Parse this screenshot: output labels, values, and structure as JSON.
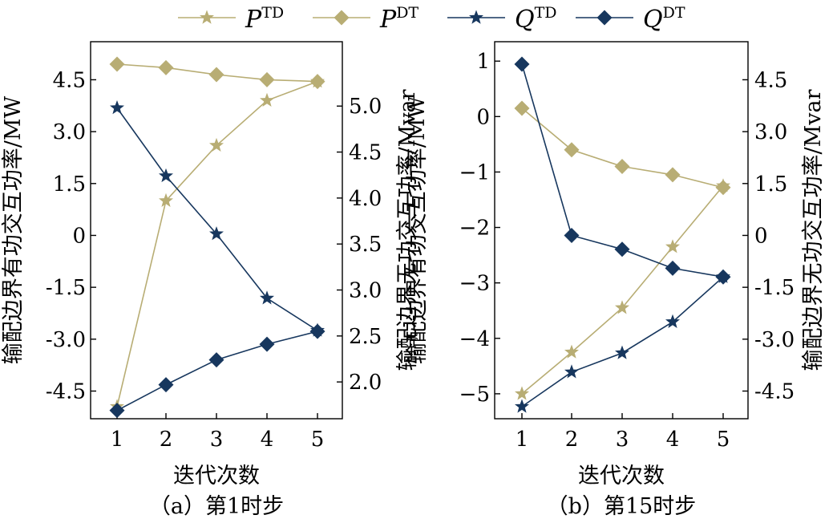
{
  "legend": [
    {
      "sym": "P",
      "sup": "TD",
      "color": "#b8ad74",
      "marker": "star"
    },
    {
      "sym": "P",
      "sup": "DT",
      "color": "#b8ad74",
      "marker": "diamond"
    },
    {
      "sym": "Q",
      "sup": "TD",
      "color": "#17375e",
      "marker": "star"
    },
    {
      "sym": "Q",
      "sup": "DT",
      "color": "#17375e",
      "marker": "diamond"
    }
  ],
  "colors": {
    "p": "#b8ad74",
    "q": "#17375e"
  },
  "chart_data": [
    {
      "type": "line",
      "caption": "（a）第1时步",
      "xlabel": "迭代次数",
      "ylabel_left": "输配边界有功交互功率/MW",
      "ylabel_right": "输配边界无功交互功率/Mvar",
      "x": [
        1,
        2,
        3,
        4,
        5
      ],
      "ylim_left": [
        -5.3,
        5.6
      ],
      "yticks_left": [
        4.5,
        3.0,
        1.5,
        0,
        -1.5,
        -3.0,
        -4.5
      ],
      "yticklabels_left": [
        "4.5",
        "3.0",
        "1.5",
        "0",
        "-1.5",
        "-3.0",
        "-4.5"
      ],
      "ylim_right": [
        1.6,
        5.7
      ],
      "yticks_right": [
        5.0,
        4.5,
        4.0,
        3.5,
        3.0,
        2.5,
        2.0
      ],
      "yticklabels_right": [
        "5.0",
        "4.5",
        "4.0",
        "3.5",
        "3.0",
        "2.5",
        "2.0"
      ],
      "series": [
        {
          "name": "P^TD",
          "axis": "left",
          "values": [
            -4.95,
            1.0,
            2.6,
            3.9,
            4.45
          ]
        },
        {
          "name": "P^DT",
          "axis": "left",
          "values": [
            4.95,
            4.85,
            4.65,
            4.5,
            4.45
          ]
        },
        {
          "name": "Q^TD",
          "axis": "right",
          "values": [
            4.98,
            4.24,
            3.61,
            2.91,
            2.56
          ]
        },
        {
          "name": "Q^DT",
          "axis": "right",
          "values": [
            1.69,
            1.97,
            2.24,
            2.41,
            2.55
          ]
        }
      ]
    },
    {
      "type": "line",
      "caption": "（b）第15时步",
      "xlabel": "迭代次数",
      "ylabel_left": "输配边界有功交互功率/MW",
      "ylabel_right": "输配边界无功交互功率/Mvar",
      "x": [
        1,
        2,
        3,
        4,
        5
      ],
      "ylim_left": [
        -5.45,
        1.35
      ],
      "yticks_left": [
        1,
        0,
        -1,
        -2,
        -3,
        -4,
        -5
      ],
      "yticklabels_left": [
        "1",
        "0",
        "−1",
        "−2",
        "−3",
        "−4",
        "−5"
      ],
      "ylim_right": [
        -5.3,
        5.6
      ],
      "yticks_right": [
        4.5,
        3.0,
        1.5,
        0,
        -1.5,
        -3.0,
        -4.5
      ],
      "yticklabels_right": [
        "4.5",
        "3.0",
        "1.5",
        "0",
        "-1.5",
        "-3.0",
        "-4.5"
      ],
      "series": [
        {
          "name": "P^TD",
          "axis": "left",
          "values": [
            -5.0,
            -4.25,
            -3.45,
            -2.35,
            -1.25
          ]
        },
        {
          "name": "P^DT",
          "axis": "left",
          "values": [
            0.15,
            -0.6,
            -0.9,
            -1.05,
            -1.28
          ]
        },
        {
          "name": "Q^TD",
          "axis": "right",
          "values": [
            -4.95,
            -3.95,
            -3.4,
            -2.5,
            -1.2
          ]
        },
        {
          "name": "Q^DT",
          "axis": "right",
          "values": [
            4.95,
            0,
            -0.4,
            -0.95,
            -1.2
          ]
        }
      ]
    }
  ]
}
